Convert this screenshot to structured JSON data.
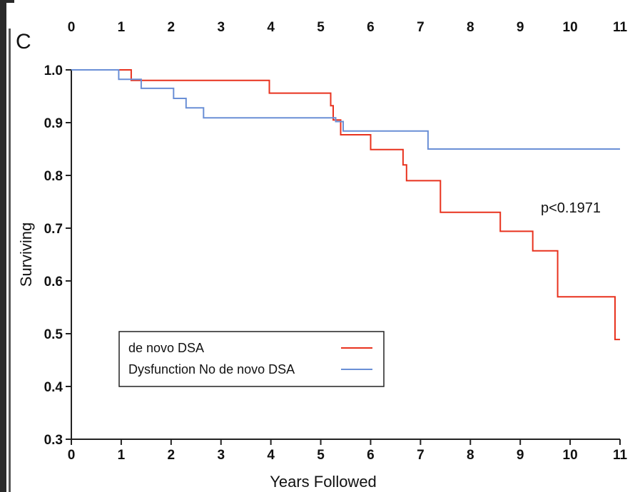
{
  "chart_data": {
    "type": "line",
    "panel_label": "C",
    "xlabel": "Years Followed",
    "ylabel": "Surviving",
    "xlim": [
      0,
      11
    ],
    "ylim": [
      0.3,
      1.0
    ],
    "x_ticks": [
      "0",
      "1",
      "2",
      "3",
      "4",
      "5",
      "6",
      "7",
      "8",
      "9",
      "10",
      "11"
    ],
    "y_ticks": [
      "0.3",
      "0.4",
      "0.5",
      "0.6",
      "0.7",
      "0.8",
      "0.9",
      "1.0"
    ],
    "top_ticks": [
      "0",
      "1",
      "2",
      "3",
      "4",
      "5",
      "6",
      "7",
      "8",
      "9",
      "10",
      "11"
    ],
    "annotation": "p<0.1971",
    "legend_position": "bottom-left",
    "grid": false,
    "series": [
      {
        "name": "de novo DSA",
        "color": "#e8321e",
        "step_points": [
          [
            0,
            1.0
          ],
          [
            1.2,
            1.0
          ],
          [
            1.2,
            0.98
          ],
          [
            3.97,
            0.98
          ],
          [
            3.97,
            0.956
          ],
          [
            5.2,
            0.956
          ],
          [
            5.2,
            0.932
          ],
          [
            5.25,
            0.932
          ],
          [
            5.25,
            0.905
          ],
          [
            5.4,
            0.905
          ],
          [
            5.4,
            0.877
          ],
          [
            6.0,
            0.877
          ],
          [
            6.0,
            0.849
          ],
          [
            6.65,
            0.849
          ],
          [
            6.65,
            0.82
          ],
          [
            6.72,
            0.82
          ],
          [
            6.72,
            0.79
          ],
          [
            7.4,
            0.79
          ],
          [
            7.4,
            0.73
          ],
          [
            8.6,
            0.73
          ],
          [
            8.6,
            0.694
          ],
          [
            9.25,
            0.694
          ],
          [
            9.25,
            0.657
          ],
          [
            9.75,
            0.657
          ],
          [
            9.75,
            0.57
          ],
          [
            10.9,
            0.57
          ],
          [
            10.9,
            0.489
          ],
          [
            11.0,
            0.489
          ]
        ]
      },
      {
        "name": "Dysfunction No de novo DSA",
        "color": "#6a8fd6",
        "step_points": [
          [
            0,
            1.0
          ],
          [
            0.95,
            1.0
          ],
          [
            0.95,
            0.982
          ],
          [
            1.4,
            0.982
          ],
          [
            1.4,
            0.965
          ],
          [
            2.05,
            0.965
          ],
          [
            2.05,
            0.946
          ],
          [
            2.3,
            0.946
          ],
          [
            2.3,
            0.928
          ],
          [
            2.65,
            0.928
          ],
          [
            2.65,
            0.909
          ],
          [
            5.3,
            0.909
          ],
          [
            5.3,
            0.902
          ],
          [
            5.45,
            0.902
          ],
          [
            5.45,
            0.884
          ],
          [
            7.15,
            0.884
          ],
          [
            7.15,
            0.85
          ],
          [
            11.0,
            0.85
          ]
        ]
      }
    ]
  }
}
